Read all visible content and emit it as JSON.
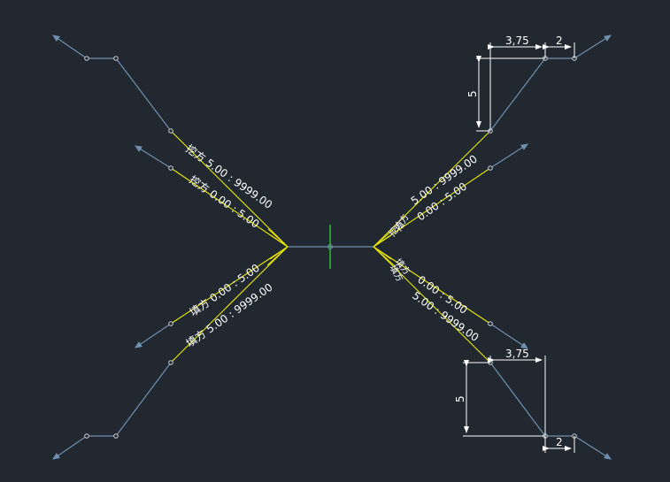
{
  "colors": {
    "background": "#212830",
    "road_line": "#7090b0",
    "slope_line": "#e8e800",
    "dimension": "#ffffff",
    "center_mark": "#22dd22"
  },
  "labels": {
    "upper_left_outer": "挖方  5.00 : 9999.00",
    "upper_left_inner": "挖方  0.00 : 5.00",
    "lower_left_inner": "填方  0.00 : 5.00",
    "lower_left_outer": "填方  5.00 : 9999.00",
    "upper_right_outer": "5.00 : 9999.00",
    "upper_right_inner": "0.00 : 5.00",
    "lower_right_inner": "0.00 : 5.00",
    "lower_right_outer": "5.00 : 9999.00",
    "upper_right_cn1": "挖方",
    "upper_right_cn2": "挖方",
    "lower_right_cn1": "填方",
    "lower_right_cn2": "填方"
  },
  "dimensions": {
    "top_width": "3,75",
    "top_offset": "2",
    "top_height": "5",
    "bottom_width": "3,75",
    "bottom_offset": "2",
    "bottom_height": "5"
  }
}
